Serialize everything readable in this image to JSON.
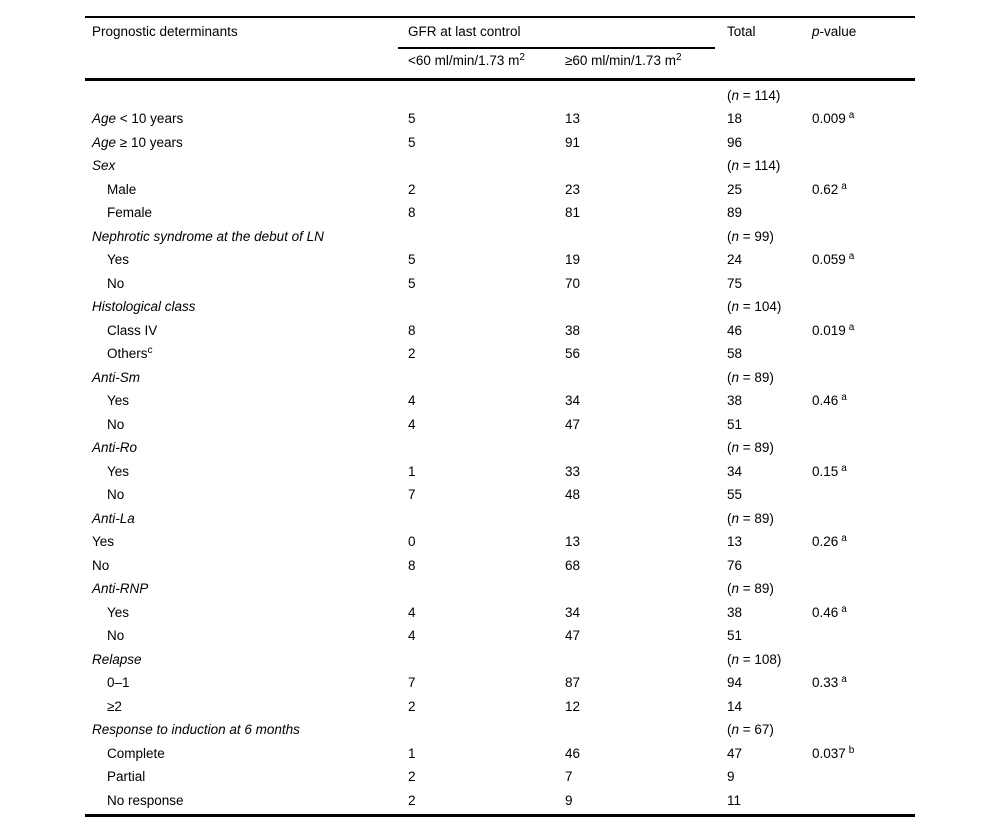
{
  "colors": {
    "background": "#ffffff",
    "text": "#000000",
    "rule": "#000000"
  },
  "table": {
    "header": {
      "determinants": "Prognostic determinants",
      "gfr_group": "GFR at last control",
      "gfr_lt60_main": "<60 ml/min/1.73 m",
      "gfr_lt60_sup": "2",
      "gfr_ge60_main": "≥60 ml/min/1.73 m",
      "gfr_ge60_sup": "2",
      "total": "Total",
      "pvalue_italic": "p",
      "pvalue_rest": "-value"
    },
    "rows": [
      {
        "n": "114"
      },
      {
        "em": "Age",
        "text": " < 10 years",
        "c1": "5",
        "c2": "13",
        "total": "18",
        "p": "0.009",
        "psup": "a"
      },
      {
        "em": "Age",
        "text": " ≥ 10 years",
        "c1": "5",
        "c2": "91",
        "total": "96"
      },
      {
        "em": "Sex",
        "n": "114"
      },
      {
        "text": "Male",
        "indent": 1,
        "c1": "2",
        "c2": "23",
        "total": "25",
        "p": "0.62",
        "psup": "a"
      },
      {
        "text": "Female",
        "indent": 1,
        "c1": "8",
        "c2": "81",
        "total": "89"
      },
      {
        "em": "Nephrotic syndrome at the debut of LN",
        "n": "99"
      },
      {
        "text": "Yes",
        "indent": 1,
        "c1": "5",
        "c2": "19",
        "total": "24",
        "p": "0.059",
        "psup": "a"
      },
      {
        "text": "No",
        "indent": 1,
        "c1": "5",
        "c2": "70",
        "total": "75"
      },
      {
        "em": "Histological class",
        "n": "104"
      },
      {
        "text": "Class IV",
        "indent": 1,
        "c1": "8",
        "c2": "38",
        "total": "46",
        "p": "0.019",
        "psup": "a"
      },
      {
        "text": "Others",
        "sup": "c",
        "indent": 1,
        "c1": "2",
        "c2": "56",
        "total": "58"
      },
      {
        "em": "Anti-Sm",
        "n": "89"
      },
      {
        "text": "Yes",
        "indent": 1,
        "c1": "4",
        "c2": "34",
        "total": "38",
        "p": "0.46",
        "psup": "a"
      },
      {
        "text": "No",
        "indent": 1,
        "c1": "4",
        "c2": "47",
        "total": "51"
      },
      {
        "em": "Anti-Ro",
        "n": "89"
      },
      {
        "text": "Yes",
        "indent": 1,
        "c1": "1",
        "c2": "33",
        "total": "34",
        "p": "0.15",
        "psup": "a"
      },
      {
        "text": "No",
        "indent": 1,
        "c1": "7",
        "c2": "48",
        "total": "55"
      },
      {
        "em": "Anti-La",
        "n": "89"
      },
      {
        "text": "Yes",
        "indent": 0,
        "c1": "0",
        "c2": "13",
        "total": "13",
        "p": "0.26",
        "psup": "a"
      },
      {
        "text": "No",
        "indent": 0,
        "c1": "8",
        "c2": "68",
        "total": "76"
      },
      {
        "em": "Anti-RNP",
        "n": "89"
      },
      {
        "text": "Yes",
        "indent": 1,
        "c1": "4",
        "c2": "34",
        "total": "38",
        "p": "0.46",
        "psup": "a"
      },
      {
        "text": "No",
        "indent": 1,
        "c1": "4",
        "c2": "47",
        "total": "51"
      },
      {
        "em": "Relapse",
        "n": "108"
      },
      {
        "text": "0–1",
        "indent": 1,
        "c1": "7",
        "c2": "87",
        "total": "94",
        "p": "0.33",
        "psup": "a"
      },
      {
        "text": "≥2",
        "indent": 1,
        "c1": "2",
        "c2": "12",
        "total": "14"
      },
      {
        "em": "Response to induction at 6 months",
        "n": "67"
      },
      {
        "text": "Complete",
        "indent": 1,
        "c1": "1",
        "c2": "46",
        "total": "47",
        "p": "0.037",
        "psup": "b"
      },
      {
        "text": "Partial",
        "indent": 1,
        "c1": "2",
        "c2": "7",
        "total": "9"
      },
      {
        "text": "No response",
        "indent": 1,
        "c1": "2",
        "c2": "9",
        "total": "11"
      }
    ]
  }
}
